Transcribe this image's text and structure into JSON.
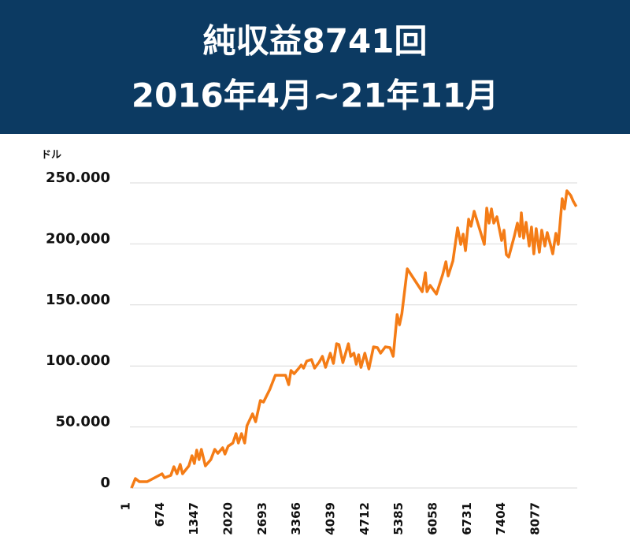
{
  "chart_data": {
    "type": "line",
    "title": "純収益8741回",
    "subtitle": "2016年4月~21年11月",
    "y_label": "ドル",
    "color": "#f47c16",
    "grid": true,
    "xlim": [
      1,
      8900
    ],
    "xticks": [
      1,
      674,
      1347,
      2020,
      2693,
      3366,
      4039,
      4712,
      5385,
      6058,
      6731,
      7404,
      8077
    ],
    "ylim": [
      0,
      250000
    ],
    "yticks": [
      0,
      {
        "value": 50000,
        "label": "50.000"
      },
      {
        "value": 100000,
        "label": "100.000"
      },
      {
        "value": 150000,
        "label": "150.000"
      },
      {
        "value": 200000,
        "label": "200,000"
      },
      {
        "value": 250000,
        "label": "250.000"
      }
    ],
    "x": [
      109,
      186,
      264,
      419,
      713,
      760,
      884,
      946,
      1008,
      1070,
      1116,
      1240,
      1302,
      1349,
      1395,
      1442,
      1488,
      1566,
      1674,
      1752,
      1814,
      1907,
      1953,
      2015,
      2108,
      2170,
      2217,
      2279,
      2341,
      2387,
      2496,
      2558,
      2651,
      2713,
      2837,
      2945,
      3147,
      3209,
      3255,
      3317,
      3410,
      3457,
      3503,
      3565,
      3658,
      3720,
      3813,
      3875,
      3937,
      4030,
      4092,
      4154,
      4201,
      4278,
      4387,
      4433,
      4495,
      4542,
      4588,
      4635,
      4712,
      4790,
      4883,
      4960,
      5022,
      5115,
      5208,
      5270,
      5348,
      5394,
      5441,
      5549,
      5844,
      5906,
      5937,
      5999,
      6123,
      6247,
      6309,
      6355,
      6448,
      6541,
      6603,
      6650,
      6696,
      6758,
      6805,
      6867,
      7068,
      7115,
      7161,
      7208,
      7254,
      7316,
      7409,
      7456,
      7502,
      7549,
      7657,
      7719,
      7766,
      7797,
      7843,
      7890,
      7952,
      7998,
      8045,
      8091,
      8153,
      8200,
      8262,
      8308,
      8370,
      8417,
      8479,
      8525,
      8603,
      8649,
      8696,
      8773,
      8820,
      8882
    ],
    "values": [
      0,
      7752,
      5168,
      5168,
      11628,
      8398,
      10336,
      17442,
      11628,
      19380,
      11628,
      18088,
      26486,
      20026,
      31008,
      23256,
      31654,
      18088,
      23256,
      31654,
      28424,
      32946,
      27778,
      34238,
      36822,
      44574,
      36822,
      44574,
      36822,
      51034,
      60724,
      54264,
      71706,
      70414,
      80750,
      92378,
      92378,
      84626,
      96254,
      93670,
      98192,
      100776,
      98192,
      104006,
      105298,
      98192,
      103360,
      107882,
      98838,
      110466,
      102068,
      118218,
      117572,
      102714,
      118218,
      107882,
      110466,
      101422,
      109174,
      98838,
      110466,
      97546,
      115634,
      114988,
      110466,
      115634,
      114988,
      107882,
      142120,
      133722,
      142766,
      179588,
      160854,
      176358,
      160854,
      166022,
      158916,
      175066,
      185402,
      173774,
      186048,
      213180,
      199614,
      208012,
      194446,
      220286,
      214472,
      226746,
      199614,
      229330,
      217056,
      228684,
      217056,
      222224,
      202844,
      211242,
      191216,
      189278,
      206074,
      217056,
      206074,
      225456,
      204782,
      217702,
      198322,
      213826,
      191862,
      212534,
      193154,
      211242,
      198322,
      209304,
      199614,
      191862,
      208658,
      199614,
      237082,
      228684,
      243542,
      239666,
      235144,
      230622
    ]
  }
}
